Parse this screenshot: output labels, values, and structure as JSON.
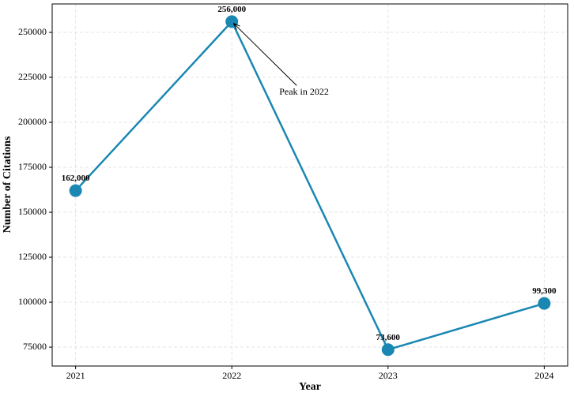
{
  "chart_data": {
    "type": "line",
    "x": [
      2021,
      2022,
      2023,
      2024
    ],
    "series": [
      {
        "name": "Citations",
        "color": "#1a87b3",
        "values": [
          162000,
          256000,
          73600,
          99300
        ],
        "value_labels": [
          "162,000",
          "256,000",
          "73,600",
          "99,300"
        ]
      }
    ],
    "xlabel": "Year",
    "ylabel": "Number of Citations",
    "xlim": [
      2020.85,
      2024.15
    ],
    "xticks": [
      2021,
      2022,
      2023,
      2024
    ],
    "ylim": [
      64500,
      265800
    ],
    "yticks": [
      75000,
      100000,
      125000,
      150000,
      175000,
      200000,
      225000,
      250000
    ],
    "grid": true,
    "annotation": "Peak in 2022",
    "annotation_color": "#aa1111"
  }
}
